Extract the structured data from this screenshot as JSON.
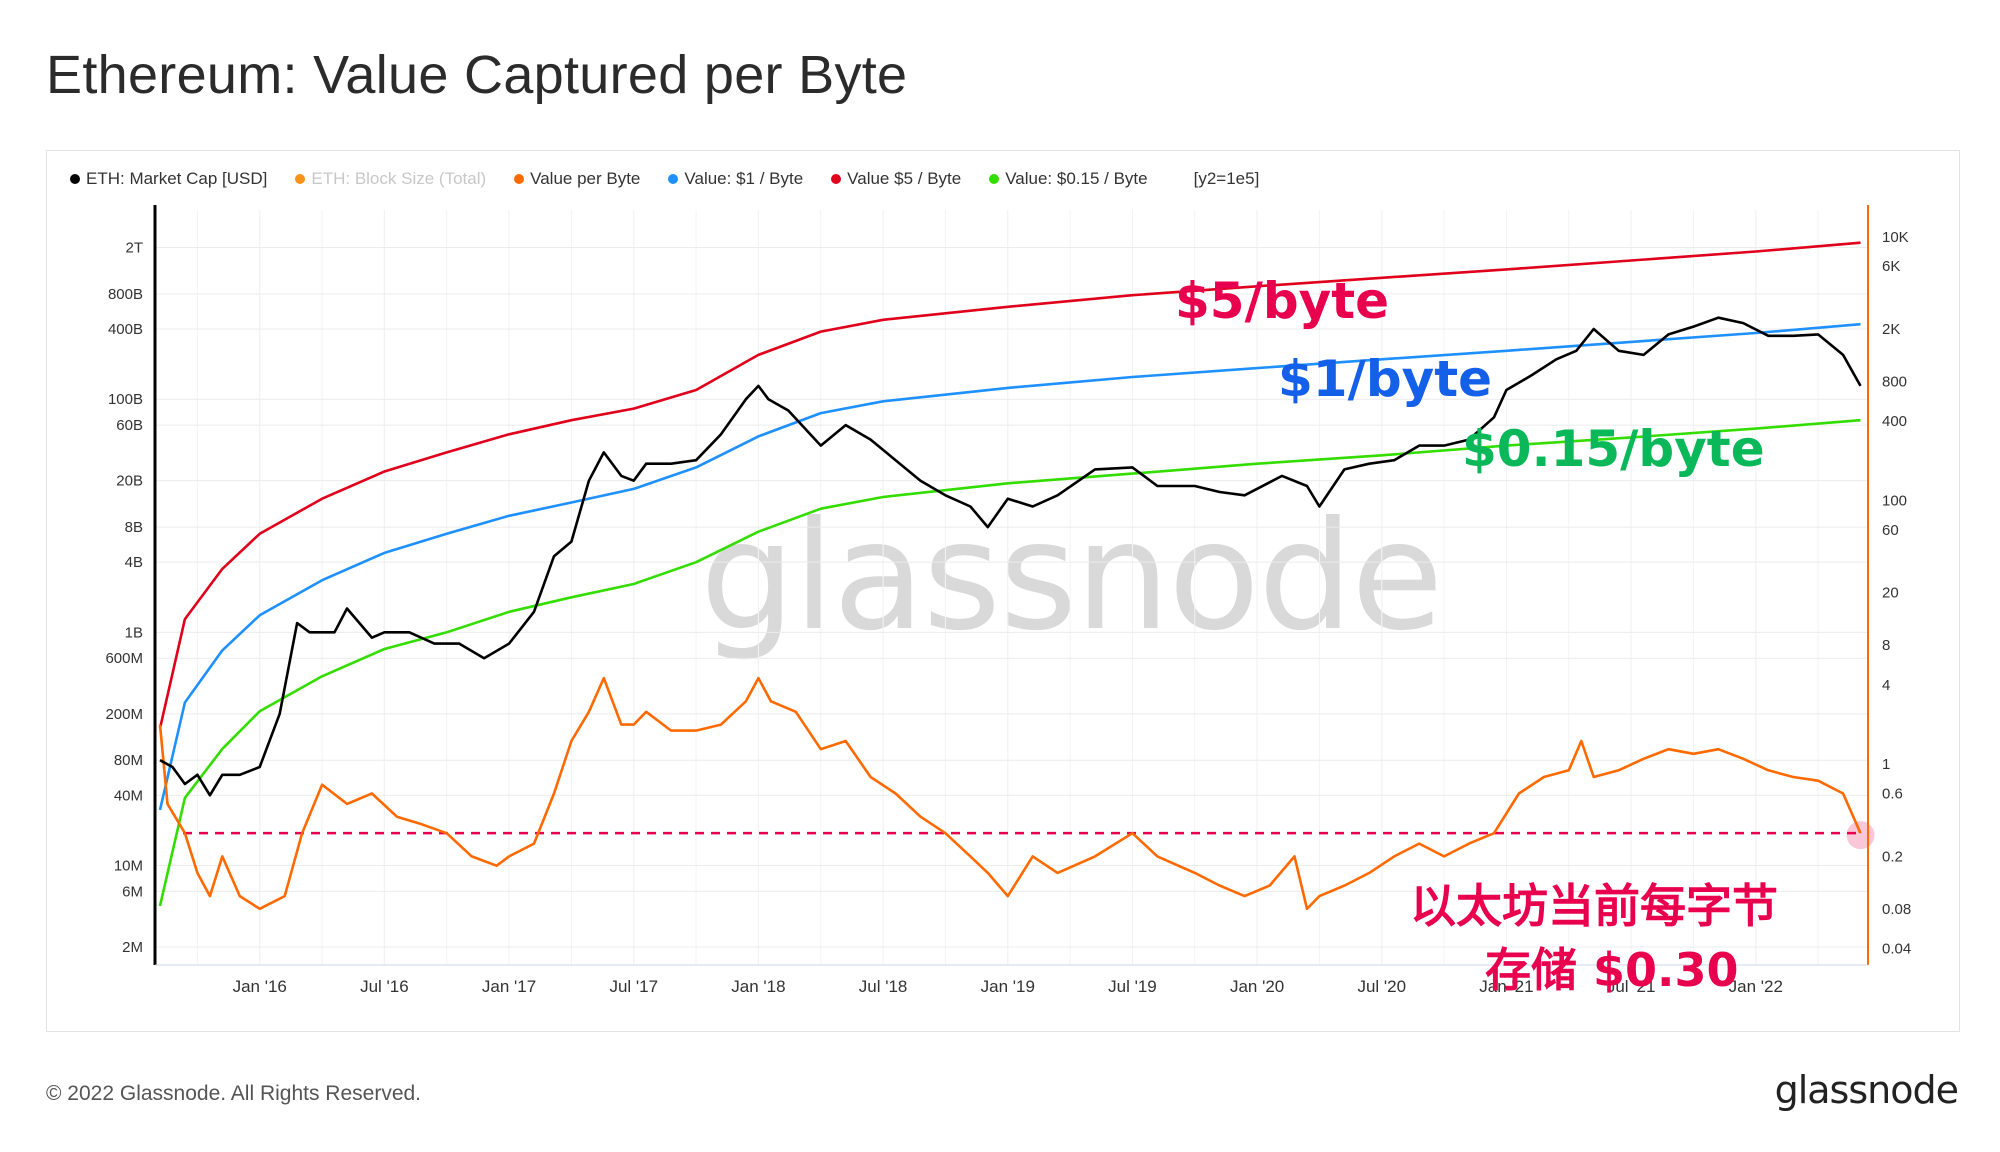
{
  "page": {
    "title": "Ethereum: Value Captured per Byte",
    "copyright": "© 2022 Glassnode. All Rights Reserved.",
    "logo": "glassnode",
    "watermark": "glassnode"
  },
  "legend": {
    "items": [
      {
        "label": "ETH: Market Cap [USD]",
        "color": "#000000",
        "enabled": true
      },
      {
        "label": "ETH: Block Size (Total)",
        "color": "#f7931a",
        "enabled": false
      },
      {
        "label": "Value per Byte",
        "color": "#ff6a00",
        "enabled": true
      },
      {
        "label": "Value: $1 / Byte",
        "color": "#1e90ff",
        "enabled": true
      },
      {
        "label": "Value $5 / Byte",
        "color": "#e0001b",
        "enabled": true
      },
      {
        "label": "Value: $0.15 / Byte",
        "color": "#33dd00",
        "enabled": true
      }
    ],
    "extra": "[y2=1e5]"
  },
  "annotations": {
    "five": {
      "text": "$5/byte",
      "color": "#e8004f"
    },
    "one": {
      "text": "$1/byte",
      "color": "#1560e8"
    },
    "fifteen": {
      "text": "$0.15/byte",
      "color": "#0ab85a"
    },
    "cn_line1": {
      "text": "以太坊当前每字节",
      "color": "#e8004f"
    },
    "cn_line2": {
      "text": "存储 $0.30",
      "color": "#e8004f"
    }
  },
  "chart_data": {
    "type": "line",
    "x_axis": {
      "ticks": [
        "Jan '16",
        "Jul '16",
        "Jan '17",
        "Jul '17",
        "Jan '18",
        "Jul '18",
        "Jan '19",
        "Jul '19",
        "Jan '20",
        "Jul '20",
        "Jan '21",
        "Jul '21",
        "Jan '22"
      ]
    },
    "y_left": {
      "scale": "log",
      "range": [
        "2M",
        "4T"
      ],
      "ticks": [
        "2T",
        "800B",
        "400B",
        "100B",
        "60B",
        "20B",
        "8B",
        "4B",
        "1B",
        "600M",
        "200M",
        "80M",
        "40M",
        "10M",
        "6M",
        "2M"
      ],
      "tick_values": [
        2000000000000.0,
        800000000000.0,
        400000000000.0,
        100000000000.0,
        60000000000.0,
        20000000000.0,
        8000000000.0,
        4000000000.0,
        1000000000.0,
        600000000.0,
        200000000.0,
        80000000.0,
        40000000.0,
        10000000.0,
        6000000.0,
        2000000.0
      ]
    },
    "y_right": {
      "scale": "log",
      "range": [
        0.03,
        16000
      ],
      "ticks": [
        "10K",
        "6K",
        "2K",
        "800",
        "400",
        "100",
        "60",
        "20",
        "8",
        "4",
        "1",
        "0.6",
        "0.2",
        "0.08",
        "0.04"
      ],
      "tick_values": [
        10000,
        6000,
        2000,
        800,
        400,
        100,
        60,
        20,
        8,
        4,
        1,
        0.6,
        0.2,
        0.08,
        0.04
      ]
    },
    "reference_line": {
      "value": 0.3,
      "axis": "right",
      "style": "dashed",
      "color": "#e8004f"
    },
    "series": [
      {
        "name": "Value $5 / Byte",
        "axis": "left",
        "color": "#e0001b",
        "x": [
          2015.6,
          2015.7,
          2015.85,
          2016.0,
          2016.25,
          2016.5,
          2016.75,
          2017.0,
          2017.25,
          2017.5,
          2017.75,
          2018.0,
          2018.25,
          2018.5,
          2019.0,
          2019.5,
          2020.0,
          2020.5,
          2021.0,
          2021.5,
          2022.0,
          2022.42
        ],
        "y": [
          150000000.0,
          1300000000.0,
          3500000000.0,
          7000000000.0,
          14000000000.0,
          24000000000.0,
          35000000000.0,
          50000000000.0,
          66000000000.0,
          83000000000.0,
          120000000000.0,
          240000000000.0,
          380000000000.0,
          480000000000.0,
          620000000000.0,
          780000000000.0,
          930000000000.0,
          1100000000000.0,
          1300000000000.0,
          1550000000000.0,
          1850000000000.0,
          2200000000000.0
        ]
      },
      {
        "name": "Value: $1 / Byte",
        "axis": "left",
        "color": "#1e90ff",
        "x": [
          2015.6,
          2015.7,
          2015.85,
          2016.0,
          2016.25,
          2016.5,
          2016.75,
          2017.0,
          2017.25,
          2017.5,
          2017.75,
          2018.0,
          2018.25,
          2018.5,
          2019.0,
          2019.5,
          2020.0,
          2020.5,
          2021.0,
          2021.5,
          2022.0,
          2022.42
        ],
        "y": [
          30000000.0,
          250000000.0,
          700000000.0,
          1400000000.0,
          2800000000.0,
          4800000000.0,
          7000000000.0,
          10000000000.0,
          13000000000.0,
          17000000000.0,
          26000000000.0,
          48000000000.0,
          76000000000.0,
          96000000000.0,
          125000000000.0,
          155000000000.0,
          185000000000.0,
          220000000000.0,
          260000000000.0,
          310000000000.0,
          370000000000.0,
          440000000000.0
        ]
      },
      {
        "name": "Value: $0.15 / Byte",
        "axis": "left",
        "color": "#33dd00",
        "x": [
          2015.6,
          2015.7,
          2015.85,
          2016.0,
          2016.25,
          2016.5,
          2016.75,
          2017.0,
          2017.25,
          2017.5,
          2017.75,
          2018.0,
          2018.25,
          2018.5,
          2019.0,
          2019.5,
          2020.0,
          2020.5,
          2021.0,
          2021.5,
          2022.0,
          2022.42
        ],
        "y": [
          4500000.0,
          38000000.0,
          100000000.0,
          210000000.0,
          420000000.0,
          720000000.0,
          1000000000.0,
          1500000000.0,
          2000000000.0,
          2600000000.0,
          4000000000.0,
          7300000000.0,
          11500000000.0,
          14500000000.0,
          19000000000.0,
          23000000000.0,
          28000000000.0,
          33000000000.0,
          40000000000.0,
          47000000000.0,
          56000000000.0,
          66000000000.0
        ]
      },
      {
        "name": "ETH: Market Cap [USD]",
        "axis": "left",
        "color": "#000000",
        "x": [
          2015.6,
          2015.65,
          2015.7,
          2015.75,
          2015.8,
          2015.85,
          2015.92,
          2016.0,
          2016.08,
          2016.15,
          2016.2,
          2016.3,
          2016.35,
          2016.45,
          2016.5,
          2016.6,
          2016.7,
          2016.8,
          2016.9,
          2017.0,
          2017.1,
          2017.18,
          2017.25,
          2017.32,
          2017.38,
          2017.45,
          2017.5,
          2017.55,
          2017.65,
          2017.75,
          2017.85,
          2017.95,
          2018.0,
          2018.04,
          2018.12,
          2018.25,
          2018.35,
          2018.45,
          2018.55,
          2018.65,
          2018.75,
          2018.85,
          2018.92,
          2019.0,
          2019.1,
          2019.2,
          2019.35,
          2019.5,
          2019.6,
          2019.75,
          2019.85,
          2019.95,
          2020.1,
          2020.2,
          2020.25,
          2020.35,
          2020.45,
          2020.55,
          2020.65,
          2020.75,
          2020.85,
          2020.95,
          2021.0,
          2021.1,
          2021.2,
          2021.28,
          2021.35,
          2021.45,
          2021.55,
          2021.65,
          2021.75,
          2021.85,
          2021.95,
          2022.05,
          2022.15,
          2022.25,
          2022.35,
          2022.42
        ],
        "y": [
          80000000.0,
          70000000.0,
          50000000.0,
          60000000.0,
          40000000.0,
          60000000.0,
          60000000.0,
          70000000.0,
          200000000.0,
          1200000000.0,
          1000000000.0,
          1000000000.0,
          1600000000.0,
          900000000.0,
          1000000000.0,
          1000000000.0,
          800000000.0,
          800000000.0,
          600000000.0,
          800000000.0,
          1500000000.0,
          4500000000.0,
          6000000000.0,
          20000000000.0,
          35000000000.0,
          22000000000.0,
          20000000000.0,
          28000000000.0,
          28000000000.0,
          30000000000.0,
          50000000000.0,
          100000000000.0,
          130000000000.0,
          100000000000.0,
          80000000000.0,
          40000000000.0,
          60000000000.0,
          45000000000.0,
          30000000000.0,
          20000000000.0,
          15000000000.0,
          12000000000.0,
          8000000000.0,
          14000000000.0,
          12000000000.0,
          15000000000.0,
          25000000000.0,
          26000000000.0,
          18000000000.0,
          18000000000.0,
          16000000000.0,
          15000000000.0,
          22000000000.0,
          18000000000.0,
          12000000000.0,
          25000000000.0,
          28000000000.0,
          30000000000.0,
          40000000000.0,
          40000000000.0,
          45000000000.0,
          70000000000.0,
          120000000000.0,
          160000000000.0,
          220000000000.0,
          260000000000.0,
          400000000000.0,
          260000000000.0,
          240000000000.0,
          360000000000.0,
          420000000000.0,
          500000000000.0,
          450000000000.0,
          350000000000.0,
          350000000000.0,
          360000000000.0,
          240000000000.0,
          130000000000.0
        ]
      },
      {
        "name": "Value per Byte",
        "axis": "right",
        "color": "#ff6a00",
        "x": [
          2015.6,
          2015.63,
          2015.7,
          2015.75,
          2015.8,
          2015.85,
          2015.92,
          2016.0,
          2016.1,
          2016.17,
          2016.25,
          2016.35,
          2016.45,
          2016.55,
          2016.65,
          2016.75,
          2016.85,
          2016.95,
          2017.0,
          2017.1,
          2017.18,
          2017.25,
          2017.32,
          2017.38,
          2017.45,
          2017.5,
          2017.55,
          2017.65,
          2017.75,
          2017.85,
          2017.95,
          2018.0,
          2018.05,
          2018.15,
          2018.25,
          2018.35,
          2018.45,
          2018.55,
          2018.65,
          2018.75,
          2018.85,
          2018.92,
          2019.0,
          2019.1,
          2019.2,
          2019.35,
          2019.5,
          2019.6,
          2019.75,
          2019.85,
          2019.95,
          2020.05,
          2020.15,
          2020.2,
          2020.25,
          2020.35,
          2020.45,
          2020.55,
          2020.65,
          2020.75,
          2020.85,
          2020.95,
          2021.05,
          2021.15,
          2021.25,
          2021.3,
          2021.35,
          2021.45,
          2021.55,
          2021.65,
          2021.75,
          2021.85,
          2021.95,
          2022.05,
          2022.15,
          2022.25,
          2022.35,
          2022.42
        ],
        "y": [
          2,
          0.5,
          0.3,
          0.15,
          0.1,
          0.2,
          0.1,
          0.08,
          0.1,
          0.3,
          0.7,
          0.5,
          0.6,
          0.4,
          0.35,
          0.3,
          0.2,
          0.17,
          0.2,
          0.25,
          0.6,
          1.5,
          2.5,
          4.5,
          2,
          2,
          2.5,
          1.8,
          1.8,
          2,
          3,
          4.5,
          3,
          2.5,
          1.3,
          1.5,
          0.8,
          0.6,
          0.4,
          0.3,
          0.2,
          0.15,
          0.1,
          0.2,
          0.15,
          0.2,
          0.3,
          0.2,
          0.15,
          0.12,
          0.1,
          0.12,
          0.2,
          0.08,
          0.1,
          0.12,
          0.15,
          0.2,
          0.25,
          0.2,
          0.25,
          0.3,
          0.6,
          0.8,
          0.9,
          1.5,
          0.8,
          0.9,
          1.1,
          1.3,
          1.2,
          1.3,
          1.1,
          0.9,
          0.8,
          0.75,
          0.6,
          0.3
        ]
      }
    ]
  }
}
